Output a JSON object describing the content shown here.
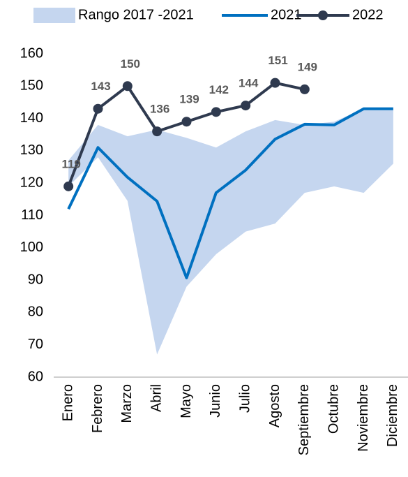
{
  "chart_data": {
    "type": "line",
    "categories": [
      "Enero",
      "Febrero",
      "Marzo",
      "Abril",
      "Mayo",
      "Junio",
      "Julio",
      "Agosto",
      "Septiembre",
      "Octubre",
      "Noviembre",
      "Diciembre"
    ],
    "series": [
      {
        "name": "Rango 2017 -2021",
        "type": "band",
        "color": "#c5d6ef",
        "upper": [
          127,
          138,
          134.5,
          136.5,
          134,
          131,
          136,
          139.5,
          138,
          139,
          143,
          143
        ],
        "lower": [
          119,
          128,
          114.5,
          67,
          88,
          98,
          105,
          107.5,
          117,
          119,
          117,
          126
        ]
      },
      {
        "name": "2021",
        "type": "line",
        "color": "#0070c0",
        "values": [
          112,
          131,
          121.8,
          114.4,
          90.7,
          117,
          124,
          133.6,
          138.2,
          138,
          143,
          143
        ]
      },
      {
        "name": "2022",
        "type": "line",
        "color": "#2f3a4f",
        "markers": true,
        "data_labels": true,
        "values": [
          119,
          143,
          150,
          136,
          139,
          142,
          144,
          151,
          149,
          null,
          null,
          null
        ]
      }
    ],
    "ylim": [
      60,
      160
    ],
    "yticks": [
      60,
      70,
      80,
      90,
      100,
      110,
      120,
      130,
      140,
      150,
      160
    ],
    "grid": false,
    "legend": "top"
  }
}
